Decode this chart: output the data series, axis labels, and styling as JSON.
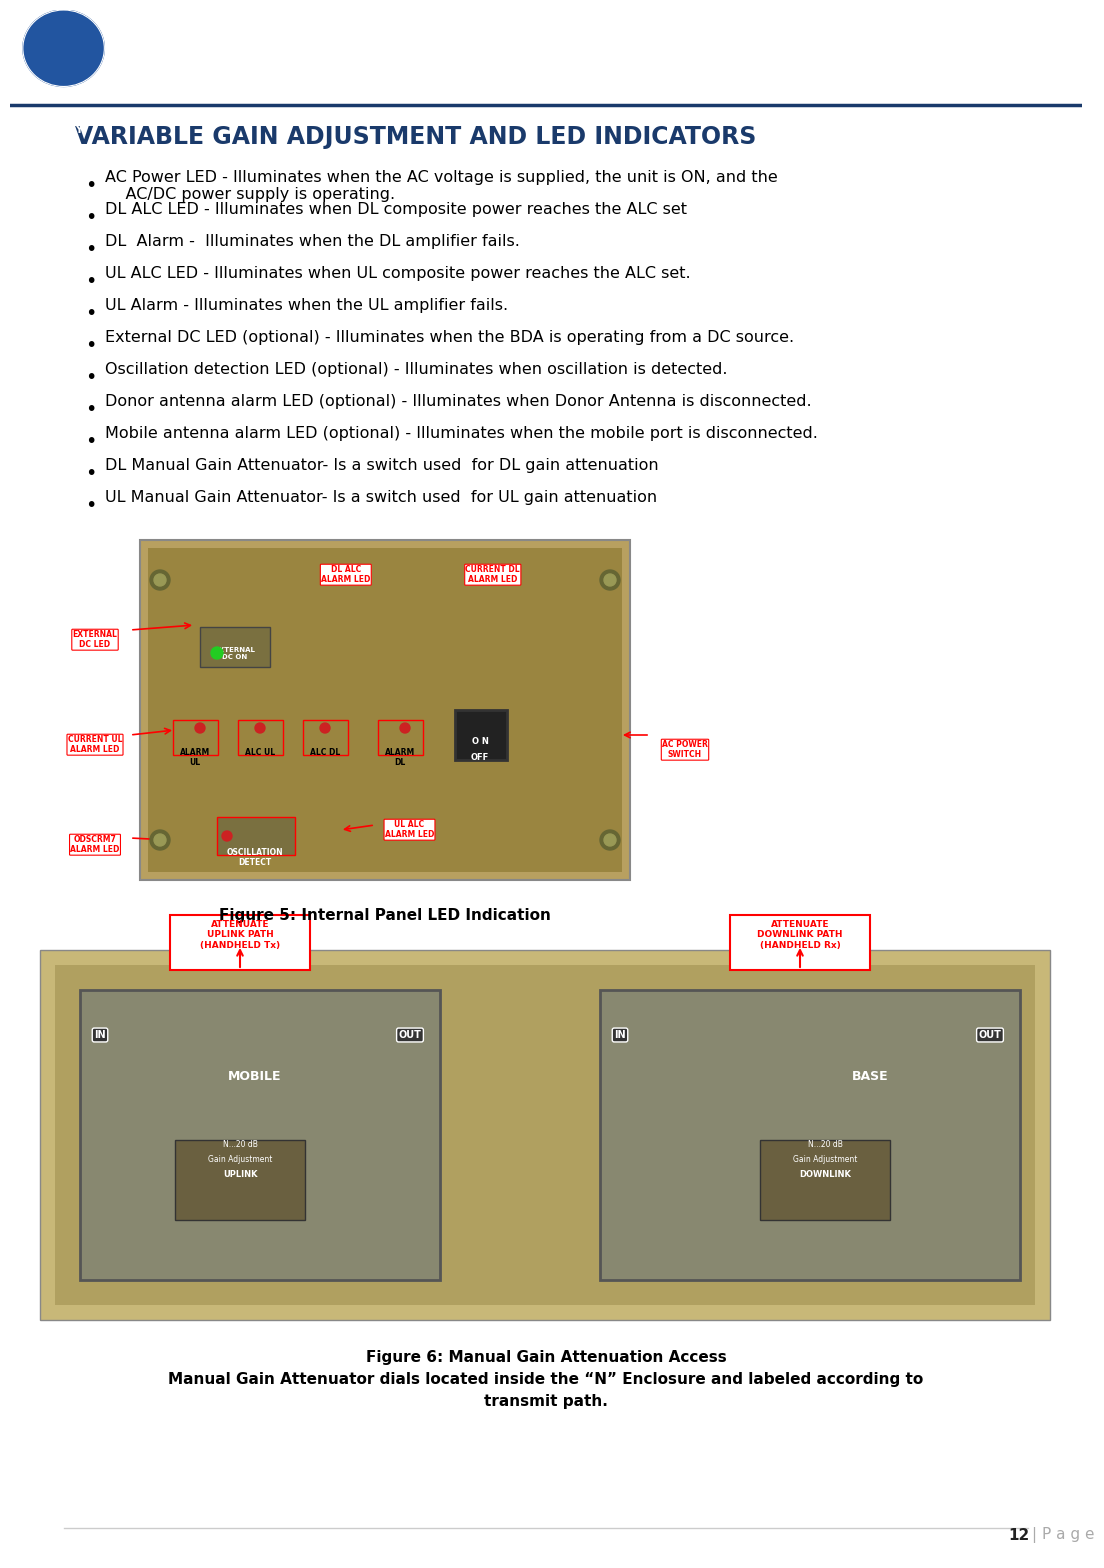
{
  "title": "VARIABLE GAIN ADJUSTMENT AND LED INDICATORS",
  "title_color": "#1a3a6b",
  "title_fontsize": 17,
  "body_fontsize": 11.5,
  "bullet_items": [
    "AC Power LED - Illuminates when the AC voltage is supplied, the unit is ON, and the\n    AC/DC power supply is operating.",
    "DL ALC LED - Illuminates when DL composite power reaches the ALC set",
    "DL  Alarm -  Illuminates when the DL amplifier fails.",
    "UL ALC LED - Illuminates when UL composite power reaches the ALC set.",
    "UL Alarm - Illuminates when the UL amplifier fails.",
    "External DC LED (optional) - Illuminates when the BDA is operating from a DC source.",
    "Oscillation detection LED (optional) - Illuminates when oscillation is detected.",
    "Donor antenna alarm LED (optional) - Illuminates when Donor Antenna is disconnected.",
    "Mobile antenna alarm LED (optional) - Illuminates when the mobile port is disconnected.",
    "DL Manual Gain Attenuator- Is a switch used  for DL gain attenuation",
    "UL Manual Gain Attenuator- Is a switch used  for UL gain attenuation"
  ],
  "fig5_caption": "Figure 5: Internal Panel LED Indication",
  "fig6_caption_line1": "Figure 6: Manual Gain Attenuation Access",
  "fig6_caption_line2": "Manual Gain Attenuator dials located inside the “N” Enclosure and labeled according to",
  "fig6_caption_line3": "transmit path.",
  "page_number": "12 | P a g e",
  "background_color": "#ffffff",
  "text_color": "#000000",
  "footer_line_color": "#cccccc",
  "header_line_color": "#1a3a6b"
}
